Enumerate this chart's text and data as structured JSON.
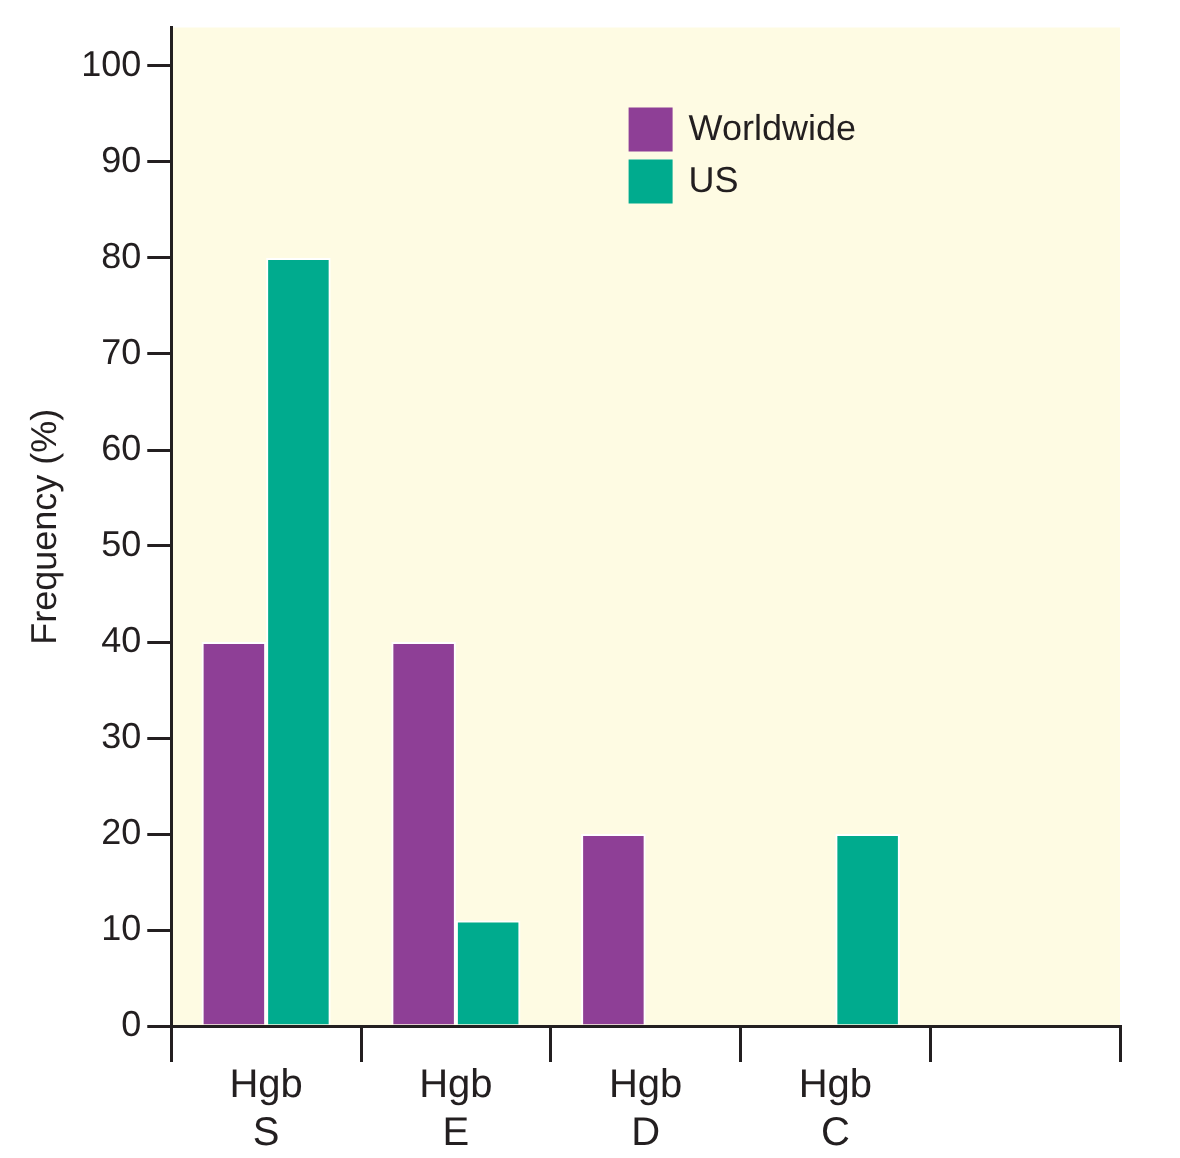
{
  "chart_data": {
    "type": "bar",
    "ylabel": "Frequency (%)",
    "categories": [
      "Hgb S",
      "Hgb E",
      "Hgb D",
      "Hgb C",
      null
    ],
    "series": [
      {
        "name": "Worldwide",
        "color": "#8e3f96",
        "values": [
          40,
          40,
          20,
          null,
          null
        ]
      },
      {
        "name": "US",
        "color": "#00ab8e",
        "values": [
          80,
          11,
          null,
          20,
          null
        ]
      }
    ],
    "ylim": [
      0,
      104
    ],
    "yticks": [
      0,
      10,
      20,
      30,
      40,
      50,
      60,
      70,
      80,
      90,
      100
    ],
    "grid": false,
    "legend": "top right"
  }
}
